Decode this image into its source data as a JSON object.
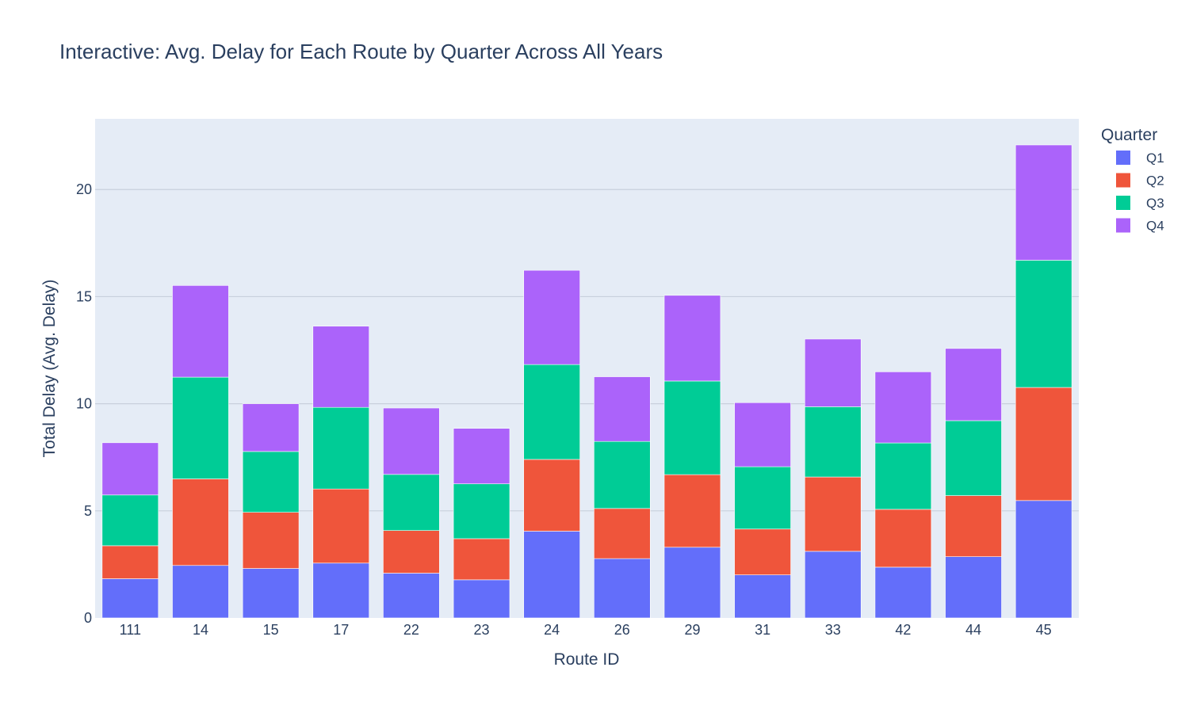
{
  "chart_data": {
    "type": "bar",
    "barmode": "stack",
    "title": "Interactive: Avg. Delay for Each Route by Quarter Across All Years",
    "xlabel": "Route ID",
    "ylabel": "Total Delay (Avg. Delay)",
    "ylim": [
      0,
      23.3
    ],
    "yticks": [
      0,
      5,
      10,
      15,
      20
    ],
    "grid": true,
    "plot_background": "#e5ecf6",
    "legend": {
      "title": "Quarter",
      "placement": "top-right"
    },
    "categories": [
      "111",
      "14",
      "15",
      "17",
      "22",
      "23",
      "24",
      "26",
      "29",
      "31",
      "33",
      "42",
      "44",
      "45"
    ],
    "series": [
      {
        "name": "Q1",
        "color": "#636efa",
        "values": [
          1.83,
          2.45,
          2.31,
          2.56,
          2.09,
          1.78,
          4.05,
          2.77,
          3.3,
          2.01,
          3.11,
          2.37,
          2.86,
          5.48
        ]
      },
      {
        "name": "Q2",
        "color": "#ef553b",
        "values": [
          1.54,
          4.04,
          2.62,
          3.46,
          1.99,
          1.92,
          3.35,
          2.34,
          3.39,
          2.14,
          3.47,
          2.7,
          2.85,
          5.28
        ]
      },
      {
        "name": "Q3",
        "color": "#00cc96",
        "values": [
          2.37,
          4.75,
          2.84,
          3.81,
          2.62,
          2.56,
          4.43,
          3.13,
          4.37,
          2.91,
          3.28,
          3.1,
          3.5,
          5.94
        ]
      },
      {
        "name": "Q4",
        "color": "#ab63fa",
        "values": [
          2.44,
          4.28,
          2.23,
          3.79,
          3.1,
          2.59,
          4.4,
          3.02,
          4.0,
          2.99,
          3.16,
          3.32,
          3.37,
          5.38
        ]
      }
    ]
  }
}
